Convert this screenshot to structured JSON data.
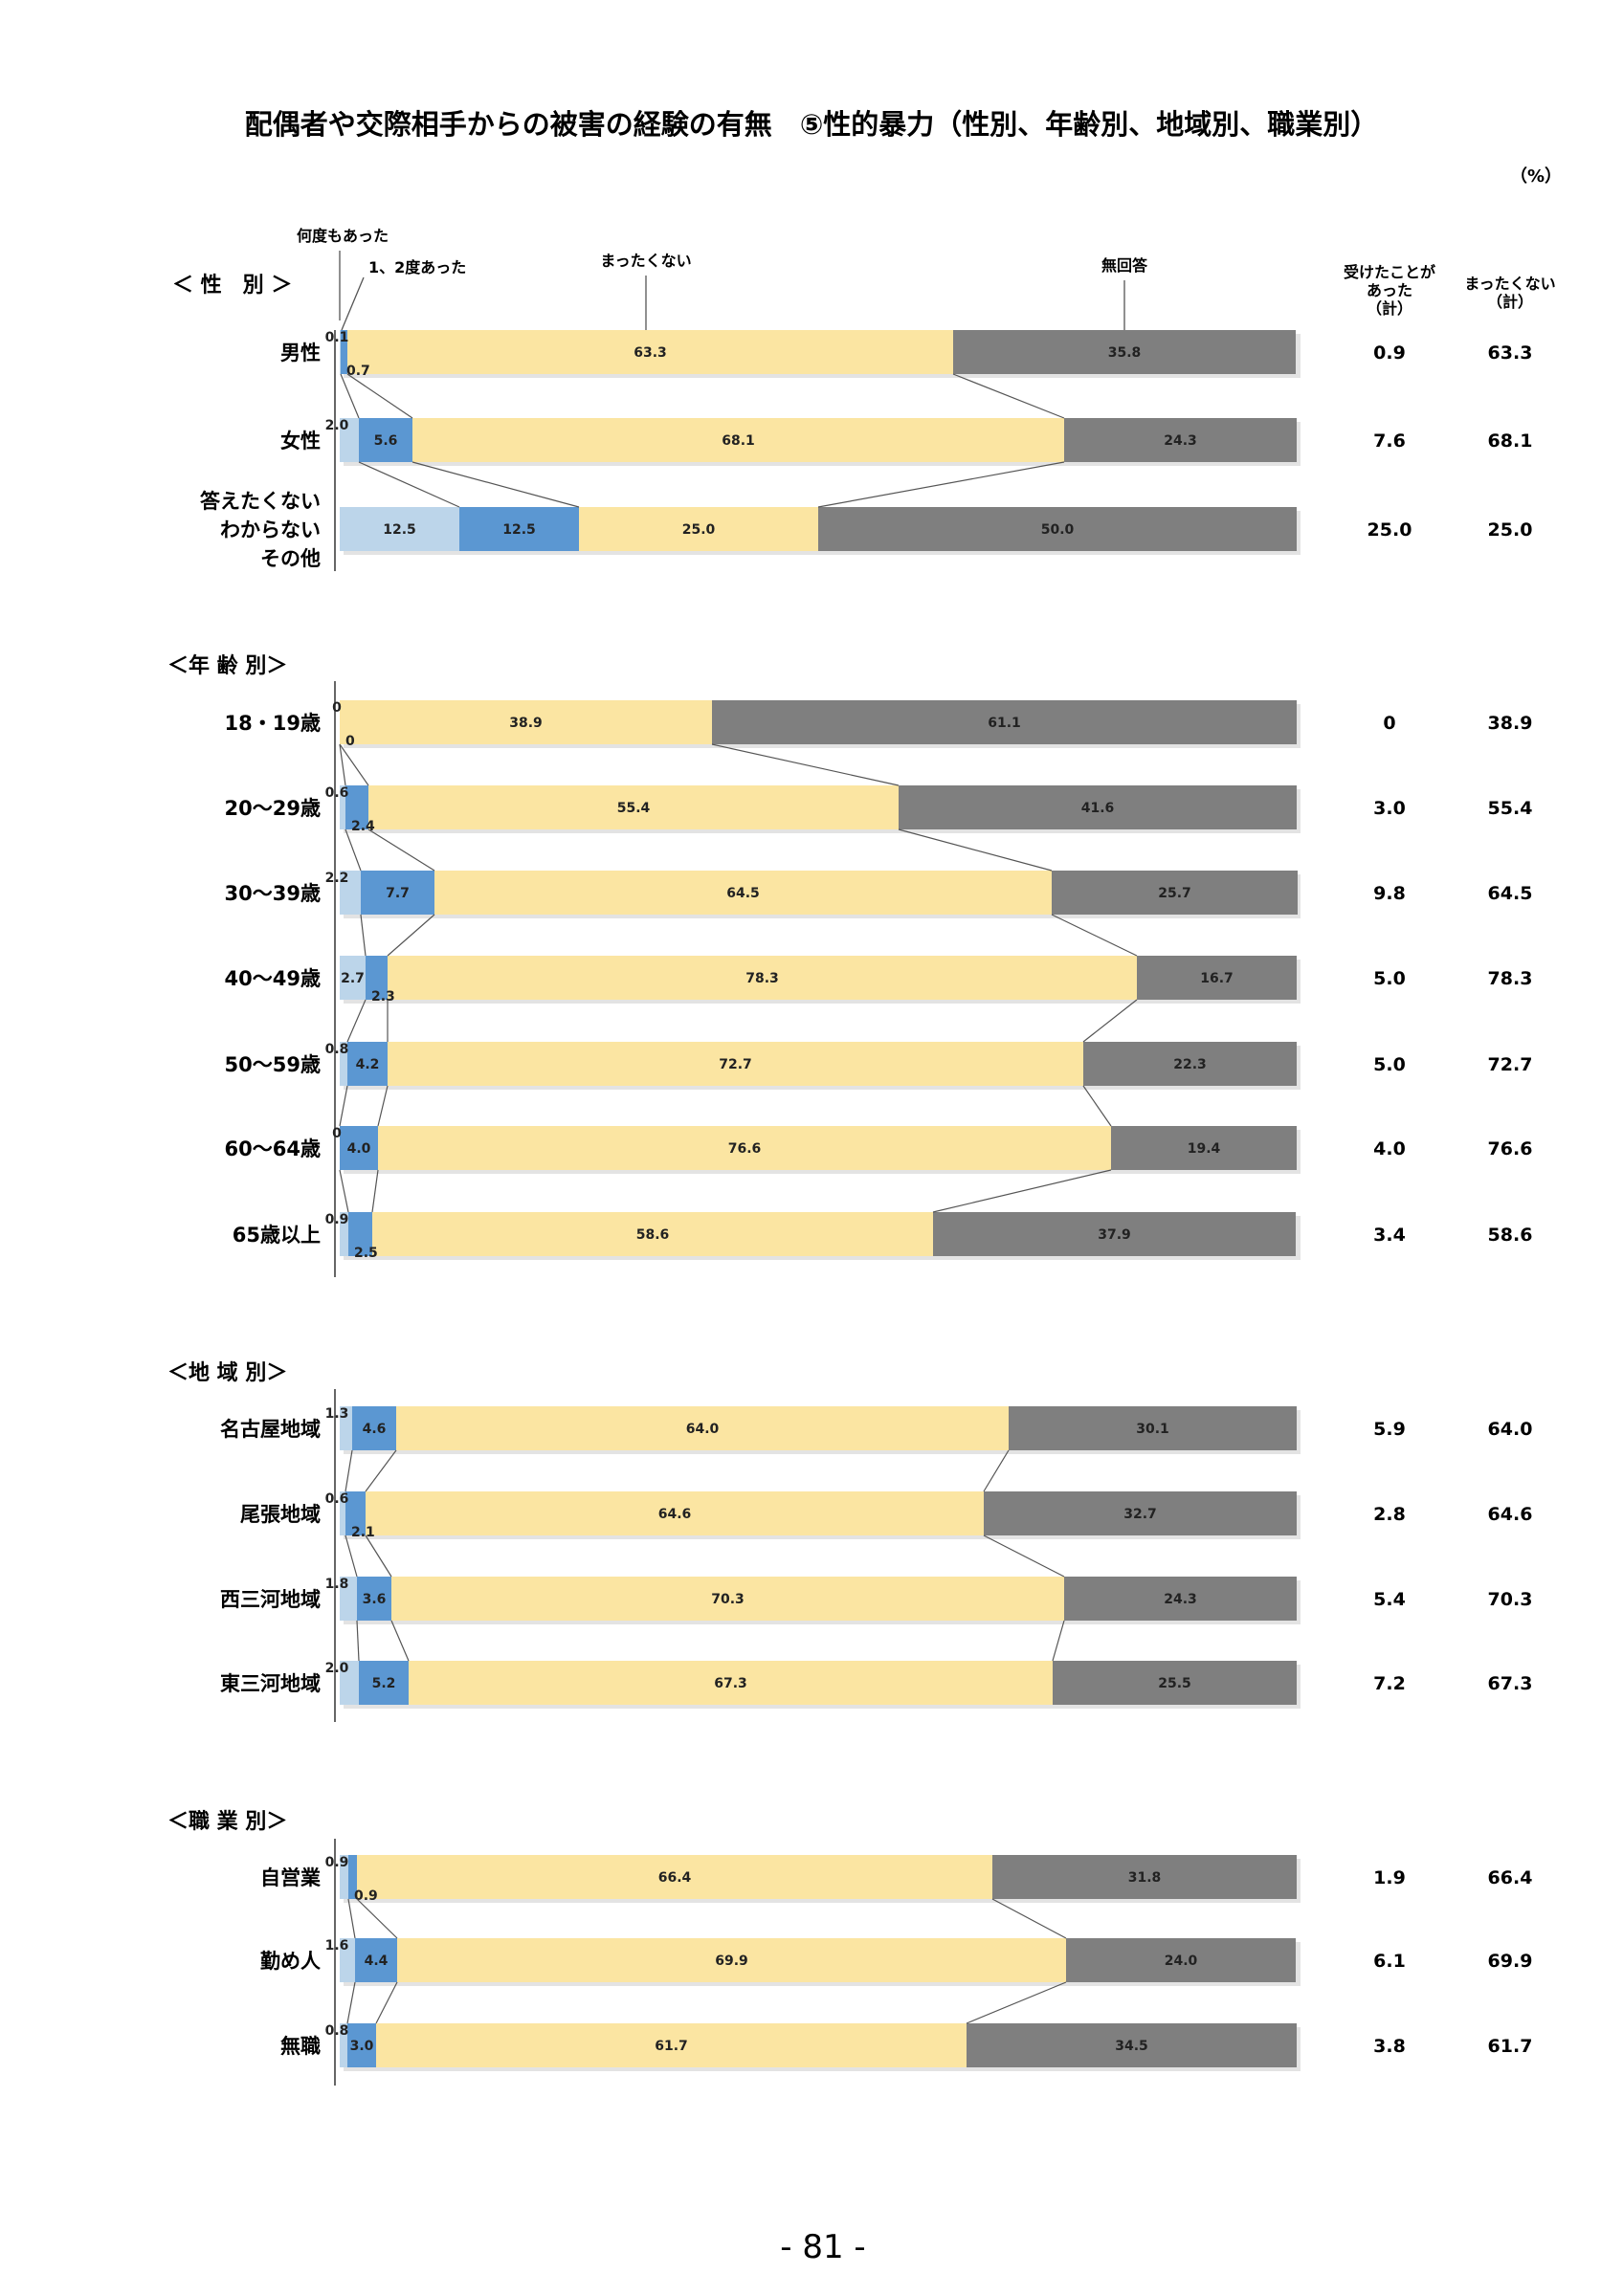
{
  "title": "配偶者や交際相手からの被害の経験の有無　⑤性的暴力（性別、年齢別、地域別、職業別）",
  "unit": "（%）",
  "page_number": "- 81 -",
  "legend": {
    "many": "何度もあった",
    "once": "1、2度あった",
    "never": "まったくない",
    "noanswer": "無回答"
  },
  "summary_headers": {
    "experienced": "受けたことが\nあった\n（計）",
    "never": "まったくない\n（計）"
  },
  "colors": {
    "many": "#bcd5ea",
    "once": "#5b97d2",
    "never": "#fbe5a2",
    "noanswer": "#7f7f7f",
    "shadow": "#e3e3e3",
    "line": "#555555"
  },
  "chart_data": {
    "type": "bar",
    "stacked": true,
    "orientation": "horizontal",
    "xlim": [
      0,
      100
    ],
    "series_names": [
      "何度もあった",
      "1、2度あった",
      "まったくない",
      "無回答"
    ],
    "groups": [
      {
        "name": "＜ 性　別 ＞",
        "rows": [
          {
            "label": "男性",
            "values": [
              0.1,
              0.7,
              63.3,
              35.8
            ],
            "experienced": "0.9",
            "never": "63.3"
          },
          {
            "label": "女性",
            "values": [
              2.0,
              5.6,
              68.1,
              24.3
            ],
            "experienced": "7.6",
            "never": "68.1"
          },
          {
            "label": "答えたくない\nわからない\nその他",
            "values": [
              12.5,
              12.5,
              25.0,
              50.0
            ],
            "experienced": "25.0",
            "never": "25.0"
          }
        ]
      },
      {
        "name": "＜年 齢 別＞",
        "rows": [
          {
            "label": "18・19歳",
            "values": [
              0,
              0,
              38.9,
              61.1
            ],
            "experienced": "0",
            "never": "38.9"
          },
          {
            "label": "20～29歳",
            "values": [
              0.6,
              2.4,
              55.4,
              41.6
            ],
            "experienced": "3.0",
            "never": "55.4"
          },
          {
            "label": "30～39歳",
            "values": [
              2.2,
              7.7,
              64.5,
              25.7
            ],
            "experienced": "9.8",
            "never": "64.5"
          },
          {
            "label": "40～49歳",
            "values": [
              2.7,
              2.3,
              78.3,
              16.7
            ],
            "experienced": "5.0",
            "never": "78.3"
          },
          {
            "label": "50～59歳",
            "values": [
              0.8,
              4.2,
              72.7,
              22.3
            ],
            "experienced": "5.0",
            "never": "72.7"
          },
          {
            "label": "60～64歳",
            "values": [
              0,
              4.0,
              76.6,
              19.4
            ],
            "experienced": "4.0",
            "never": "76.6"
          },
          {
            "label": "65歳以上",
            "values": [
              0.9,
              2.5,
              58.6,
              37.9
            ],
            "experienced": "3.4",
            "never": "58.6"
          }
        ]
      },
      {
        "name": "＜地 域 別＞",
        "rows": [
          {
            "label": "名古屋地域",
            "values": [
              1.3,
              4.6,
              64.0,
              30.1
            ],
            "experienced": "5.9",
            "never": "64.0"
          },
          {
            "label": "尾張地域",
            "values": [
              0.6,
              2.1,
              64.6,
              32.7
            ],
            "experienced": "2.8",
            "never": "64.6"
          },
          {
            "label": "西三河地域",
            "values": [
              1.8,
              3.6,
              70.3,
              24.3
            ],
            "experienced": "5.4",
            "never": "70.3"
          },
          {
            "label": "東三河地域",
            "values": [
              2.0,
              5.2,
              67.3,
              25.5
            ],
            "experienced": "7.2",
            "never": "67.3"
          }
        ]
      },
      {
        "name": "＜職 業 別＞",
        "rows": [
          {
            "label": "自営業",
            "values": [
              0.9,
              0.9,
              66.4,
              31.8
            ],
            "experienced": "1.9",
            "never": "66.4"
          },
          {
            "label": "勤め人",
            "values": [
              1.6,
              4.4,
              69.9,
              24.0
            ],
            "experienced": "6.1",
            "never": "69.9"
          },
          {
            "label": "無職",
            "values": [
              0.8,
              3.0,
              61.7,
              34.5
            ],
            "experienced": "3.8",
            "never": "61.7"
          }
        ]
      }
    ]
  }
}
